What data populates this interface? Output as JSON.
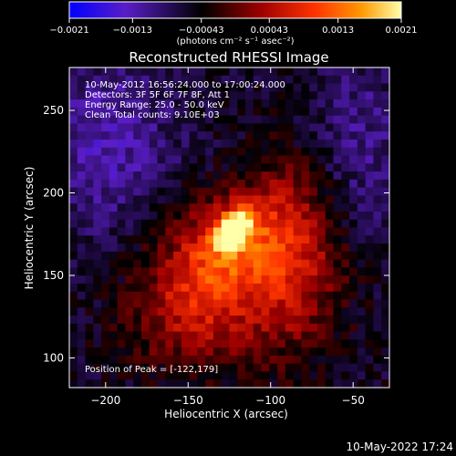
{
  "image": {
    "title": "Reconstructed RHESSI Image",
    "info_lines": [
      "10-May-2012 16:56:24.000 to 17:00:24.000",
      "Detectors: 3F 5F 6F 7F 8F, Att 1",
      "Energy Range: 25.0 - 50.0 keV",
      "Clean     Total counts: 9.10E+03"
    ],
    "peak_label": "Position of Peak = [-122,179]",
    "x_axis": {
      "label": "Heliocentric X (arcsec)",
      "range": [
        -222,
        -28
      ],
      "ticks": [
        -200,
        -150,
        -100,
        -50
      ],
      "tick_labels": [
        "−200",
        "−150",
        "−100",
        "−50"
      ]
    },
    "y_axis": {
      "label": "Heliocentric Y (arcsec)",
      "range": [
        82,
        276
      ],
      "ticks": [
        100,
        150,
        200,
        250
      ],
      "tick_labels": [
        "100",
        "150",
        "200",
        "250"
      ]
    },
    "colorbar": {
      "unit_label": "(photons cm⁻² s⁻¹ asec⁻²)",
      "range": [
        -0.0021,
        0.0021
      ],
      "tick_labels": [
        "−0.0021",
        "−0.0013",
        "−0.00043",
        "0.00043",
        "0.0013",
        "0.0021"
      ],
      "tick_values": [
        -0.0021,
        -0.0013,
        -0.00043,
        0.00043,
        0.0013,
        0.0021
      ]
    },
    "colors": {
      "background": "#000000",
      "text": "#ffffff",
      "colormap": [
        "#0000ff",
        "#5a1dc7",
        "#000000",
        "#a00000",
        "#ff3300",
        "#ff9900",
        "#ffffaa"
      ]
    },
    "peak_position": [
      -122,
      179
    ]
  },
  "footer": {
    "timestamp": "10-May-2022 17:24"
  }
}
